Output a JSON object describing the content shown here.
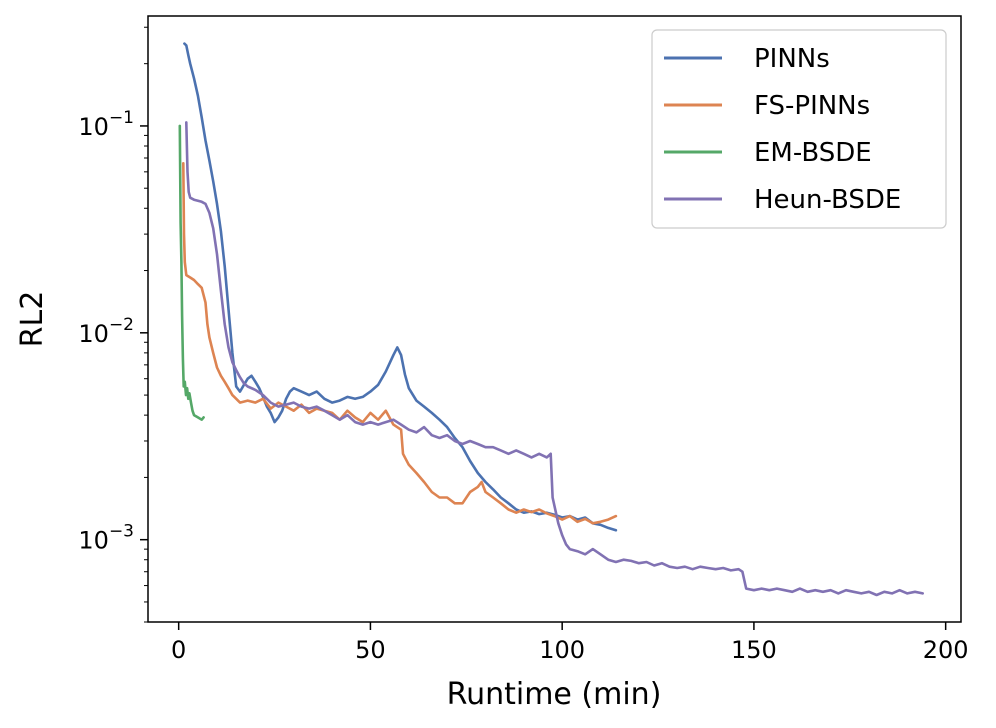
{
  "chart_data": {
    "type": "line",
    "xlabel": "Runtime (min)",
    "ylabel": "RL2",
    "yscale": "log",
    "xlim": [
      -8,
      204
    ],
    "ylim": [
      0.0004,
      0.34
    ],
    "xticks": [
      0,
      50,
      100,
      150,
      200
    ],
    "xtick_labels": [
      "0",
      "50",
      "100",
      "150",
      "200"
    ],
    "yticks": [
      0.001,
      0.01,
      0.1
    ],
    "ytick_labels": [
      {
        "base": "10",
        "exp": "−3"
      },
      {
        "base": "10",
        "exp": "−2"
      },
      {
        "base": "10",
        "exp": "−1"
      }
    ],
    "grid": false,
    "legend_position": "top-right",
    "series": [
      {
        "name": "PINNs",
        "color": "#4c72b0",
        "points": [
          [
            1.5,
            0.25
          ],
          [
            2,
            0.245
          ],
          [
            2.5,
            0.22
          ],
          [
            3,
            0.2
          ],
          [
            4,
            0.17
          ],
          [
            5,
            0.14
          ],
          [
            6,
            0.11
          ],
          [
            7,
            0.085
          ],
          [
            8,
            0.068
          ],
          [
            9,
            0.054
          ],
          [
            10,
            0.042
          ],
          [
            11,
            0.031
          ],
          [
            12,
            0.021
          ],
          [
            13,
            0.013
          ],
          [
            14,
            0.008
          ],
          [
            15,
            0.0055
          ],
          [
            16,
            0.0052
          ],
          [
            17,
            0.0056
          ],
          [
            18,
            0.006
          ],
          [
            19,
            0.0062
          ],
          [
            20,
            0.0058
          ],
          [
            21,
            0.0054
          ],
          [
            22,
            0.0049
          ],
          [
            23,
            0.0044
          ],
          [
            24,
            0.0041
          ],
          [
            25,
            0.0037
          ],
          [
            26,
            0.0039
          ],
          [
            27,
            0.0042
          ],
          [
            28,
            0.0048
          ],
          [
            29,
            0.0052
          ],
          [
            30,
            0.0054
          ],
          [
            32,
            0.0052
          ],
          [
            34,
            0.005
          ],
          [
            36,
            0.0052
          ],
          [
            38,
            0.0048
          ],
          [
            40,
            0.0046
          ],
          [
            42,
            0.0047
          ],
          [
            44,
            0.0049
          ],
          [
            46,
            0.0048
          ],
          [
            48,
            0.0049
          ],
          [
            50,
            0.0052
          ],
          [
            52,
            0.0056
          ],
          [
            54,
            0.0065
          ],
          [
            56,
            0.0078
          ],
          [
            57,
            0.0085
          ],
          [
            58,
            0.0078
          ],
          [
            59,
            0.0063
          ],
          [
            60,
            0.0054
          ],
          [
            62,
            0.0047
          ],
          [
            64,
            0.0044
          ],
          [
            66,
            0.0041
          ],
          [
            68,
            0.0038
          ],
          [
            70,
            0.0035
          ],
          [
            72,
            0.0031
          ],
          [
            74,
            0.0028
          ],
          [
            76,
            0.0024
          ],
          [
            78,
            0.0021
          ],
          [
            80,
            0.0019
          ],
          [
            82,
            0.00175
          ],
          [
            84,
            0.0016
          ],
          [
            86,
            0.0015
          ],
          [
            88,
            0.0014
          ],
          [
            90,
            0.00135
          ],
          [
            92,
            0.00137
          ],
          [
            94,
            0.00133
          ],
          [
            96,
            0.00135
          ],
          [
            98,
            0.00132
          ],
          [
            100,
            0.00128
          ],
          [
            102,
            0.0013
          ],
          [
            104,
            0.00125
          ],
          [
            106,
            0.00128
          ],
          [
            108,
            0.0012
          ],
          [
            110,
            0.00118
          ],
          [
            112,
            0.00114
          ],
          [
            114,
            0.00111
          ]
        ]
      },
      {
        "name": "FS-PINNs",
        "color": "#dd8452",
        "points": [
          [
            1.2,
            0.066
          ],
          [
            1.4,
            0.03
          ],
          [
            1.6,
            0.022
          ],
          [
            2,
            0.019
          ],
          [
            3,
            0.0185
          ],
          [
            4,
            0.018
          ],
          [
            5,
            0.0172
          ],
          [
            6,
            0.0165
          ],
          [
            7,
            0.014
          ],
          [
            7.5,
            0.011
          ],
          [
            8,
            0.0095
          ],
          [
            9,
            0.008
          ],
          [
            10,
            0.0068
          ],
          [
            11,
            0.0062
          ],
          [
            12,
            0.0058
          ],
          [
            13,
            0.0054
          ],
          [
            14,
            0.005
          ],
          [
            15,
            0.0048
          ],
          [
            16,
            0.0046
          ],
          [
            18,
            0.0047
          ],
          [
            20,
            0.0046
          ],
          [
            22,
            0.0048
          ],
          [
            24,
            0.0043
          ],
          [
            26,
            0.0046
          ],
          [
            28,
            0.0044
          ],
          [
            30,
            0.0042
          ],
          [
            32,
            0.0045
          ],
          [
            34,
            0.0041
          ],
          [
            36,
            0.0043
          ],
          [
            38,
            0.0042
          ],
          [
            40,
            0.0041
          ],
          [
            42,
            0.0038
          ],
          [
            44,
            0.0042
          ],
          [
            46,
            0.0039
          ],
          [
            48,
            0.0037
          ],
          [
            50,
            0.0041
          ],
          [
            52,
            0.0038
          ],
          [
            54,
            0.0042
          ],
          [
            56,
            0.0036
          ],
          [
            58,
            0.0034
          ],
          [
            58.5,
            0.0026
          ],
          [
            60,
            0.0023
          ],
          [
            62,
            0.0021
          ],
          [
            64,
            0.0019
          ],
          [
            66,
            0.0017
          ],
          [
            68,
            0.0016
          ],
          [
            70,
            0.0016
          ],
          [
            72,
            0.0015
          ],
          [
            74,
            0.0015
          ],
          [
            76,
            0.0017
          ],
          [
            78,
            0.0018
          ],
          [
            79,
            0.0019
          ],
          [
            80,
            0.0017
          ],
          [
            82,
            0.0016
          ],
          [
            84,
            0.0015
          ],
          [
            86,
            0.0014
          ],
          [
            88,
            0.00135
          ],
          [
            90,
            0.0014
          ],
          [
            92,
            0.00136
          ],
          [
            94,
            0.0014
          ],
          [
            96,
            0.00134
          ],
          [
            98,
            0.0013
          ],
          [
            100,
            0.00125
          ],
          [
            102,
            0.0013
          ],
          [
            104,
            0.00122
          ],
          [
            106,
            0.00126
          ],
          [
            108,
            0.0012
          ],
          [
            110,
            0.00122
          ],
          [
            112,
            0.00125
          ],
          [
            114,
            0.0013
          ]
        ]
      },
      {
        "name": "EM-BSDE",
        "color": "#55a868",
        "points": [
          [
            0.3,
            0.1
          ],
          [
            0.5,
            0.034
          ],
          [
            0.7,
            0.022
          ],
          [
            0.9,
            0.012
          ],
          [
            1.1,
            0.0075
          ],
          [
            1.3,
            0.0055
          ],
          [
            1.6,
            0.0058
          ],
          [
            1.9,
            0.005
          ],
          [
            2.2,
            0.0054
          ],
          [
            2.5,
            0.0048
          ],
          [
            2.8,
            0.0051
          ],
          [
            3.2,
            0.0046
          ],
          [
            3.6,
            0.0042
          ],
          [
            4,
            0.004
          ],
          [
            5,
            0.0039
          ],
          [
            6,
            0.0038
          ],
          [
            6.5,
            0.0039
          ]
        ]
      },
      {
        "name": "Heun-BSDE",
        "color": "#8172b3",
        "points": [
          [
            2,
            0.104
          ],
          [
            2.3,
            0.06
          ],
          [
            2.6,
            0.048
          ],
          [
            3,
            0.045
          ],
          [
            4,
            0.044
          ],
          [
            5,
            0.0435
          ],
          [
            6,
            0.043
          ],
          [
            7,
            0.042
          ],
          [
            8,
            0.038
          ],
          [
            9,
            0.032
          ],
          [
            10,
            0.024
          ],
          [
            11,
            0.016
          ],
          [
            12,
            0.011
          ],
          [
            13,
            0.0085
          ],
          [
            14,
            0.0072
          ],
          [
            15,
            0.0066
          ],
          [
            16,
            0.0061
          ],
          [
            17,
            0.0057
          ],
          [
            18,
            0.0055
          ],
          [
            20,
            0.0053
          ],
          [
            22,
            0.005
          ],
          [
            24,
            0.0046
          ],
          [
            26,
            0.0044
          ],
          [
            28,
            0.0045
          ],
          [
            30,
            0.0046
          ],
          [
            32,
            0.0044
          ],
          [
            34,
            0.0043
          ],
          [
            36,
            0.0044
          ],
          [
            38,
            0.0042
          ],
          [
            40,
            0.004
          ],
          [
            42,
            0.0038
          ],
          [
            44,
            0.004
          ],
          [
            46,
            0.0037
          ],
          [
            48,
            0.0036
          ],
          [
            50,
            0.0037
          ],
          [
            52,
            0.0036
          ],
          [
            54,
            0.0037
          ],
          [
            56,
            0.0038
          ],
          [
            58,
            0.0036
          ],
          [
            60,
            0.0034
          ],
          [
            62,
            0.0033
          ],
          [
            64,
            0.0035
          ],
          [
            66,
            0.0032
          ],
          [
            68,
            0.0031
          ],
          [
            70,
            0.0032
          ],
          [
            72,
            0.003
          ],
          [
            74,
            0.0029
          ],
          [
            76,
            0.003
          ],
          [
            78,
            0.0029
          ],
          [
            80,
            0.0028
          ],
          [
            82,
            0.0028
          ],
          [
            84,
            0.0027
          ],
          [
            86,
            0.0026
          ],
          [
            88,
            0.0027
          ],
          [
            90,
            0.0026
          ],
          [
            92,
            0.0025
          ],
          [
            94,
            0.0026
          ],
          [
            96,
            0.0025
          ],
          [
            97,
            0.0026
          ],
          [
            97.5,
            0.0016
          ],
          [
            99,
            0.0012
          ],
          [
            100,
            0.00105
          ],
          [
            101,
            0.00095
          ],
          [
            102,
            0.0009
          ],
          [
            104,
            0.00088
          ],
          [
            106,
            0.00085
          ],
          [
            108,
            0.0009
          ],
          [
            110,
            0.00085
          ],
          [
            112,
            0.0008
          ],
          [
            114,
            0.00078
          ],
          [
            116,
            0.0008
          ],
          [
            118,
            0.00079
          ],
          [
            120,
            0.00077
          ],
          [
            122,
            0.00078
          ],
          [
            124,
            0.00075
          ],
          [
            126,
            0.00077
          ],
          [
            128,
            0.00074
          ],
          [
            130,
            0.00073
          ],
          [
            132,
            0.00074
          ],
          [
            134,
            0.00072
          ],
          [
            136,
            0.00074
          ],
          [
            138,
            0.00073
          ],
          [
            140,
            0.00072
          ],
          [
            142,
            0.00073
          ],
          [
            144,
            0.00071
          ],
          [
            146,
            0.00072
          ],
          [
            147,
            0.0007
          ],
          [
            148,
            0.00058
          ],
          [
            150,
            0.00057
          ],
          [
            152,
            0.00058
          ],
          [
            154,
            0.00057
          ],
          [
            156,
            0.00058
          ],
          [
            158,
            0.00057
          ],
          [
            160,
            0.00056
          ],
          [
            162,
            0.00058
          ],
          [
            164,
            0.00056
          ],
          [
            166,
            0.00057
          ],
          [
            168,
            0.00056
          ],
          [
            170,
            0.00057
          ],
          [
            172,
            0.00055
          ],
          [
            174,
            0.00057
          ],
          [
            176,
            0.00056
          ],
          [
            178,
            0.00055
          ],
          [
            180,
            0.00056
          ],
          [
            182,
            0.00054
          ],
          [
            184,
            0.00056
          ],
          [
            186,
            0.00055
          ],
          [
            188,
            0.00057
          ],
          [
            190,
            0.00055
          ],
          [
            192,
            0.00056
          ],
          [
            194,
            0.00055
          ]
        ]
      }
    ]
  }
}
